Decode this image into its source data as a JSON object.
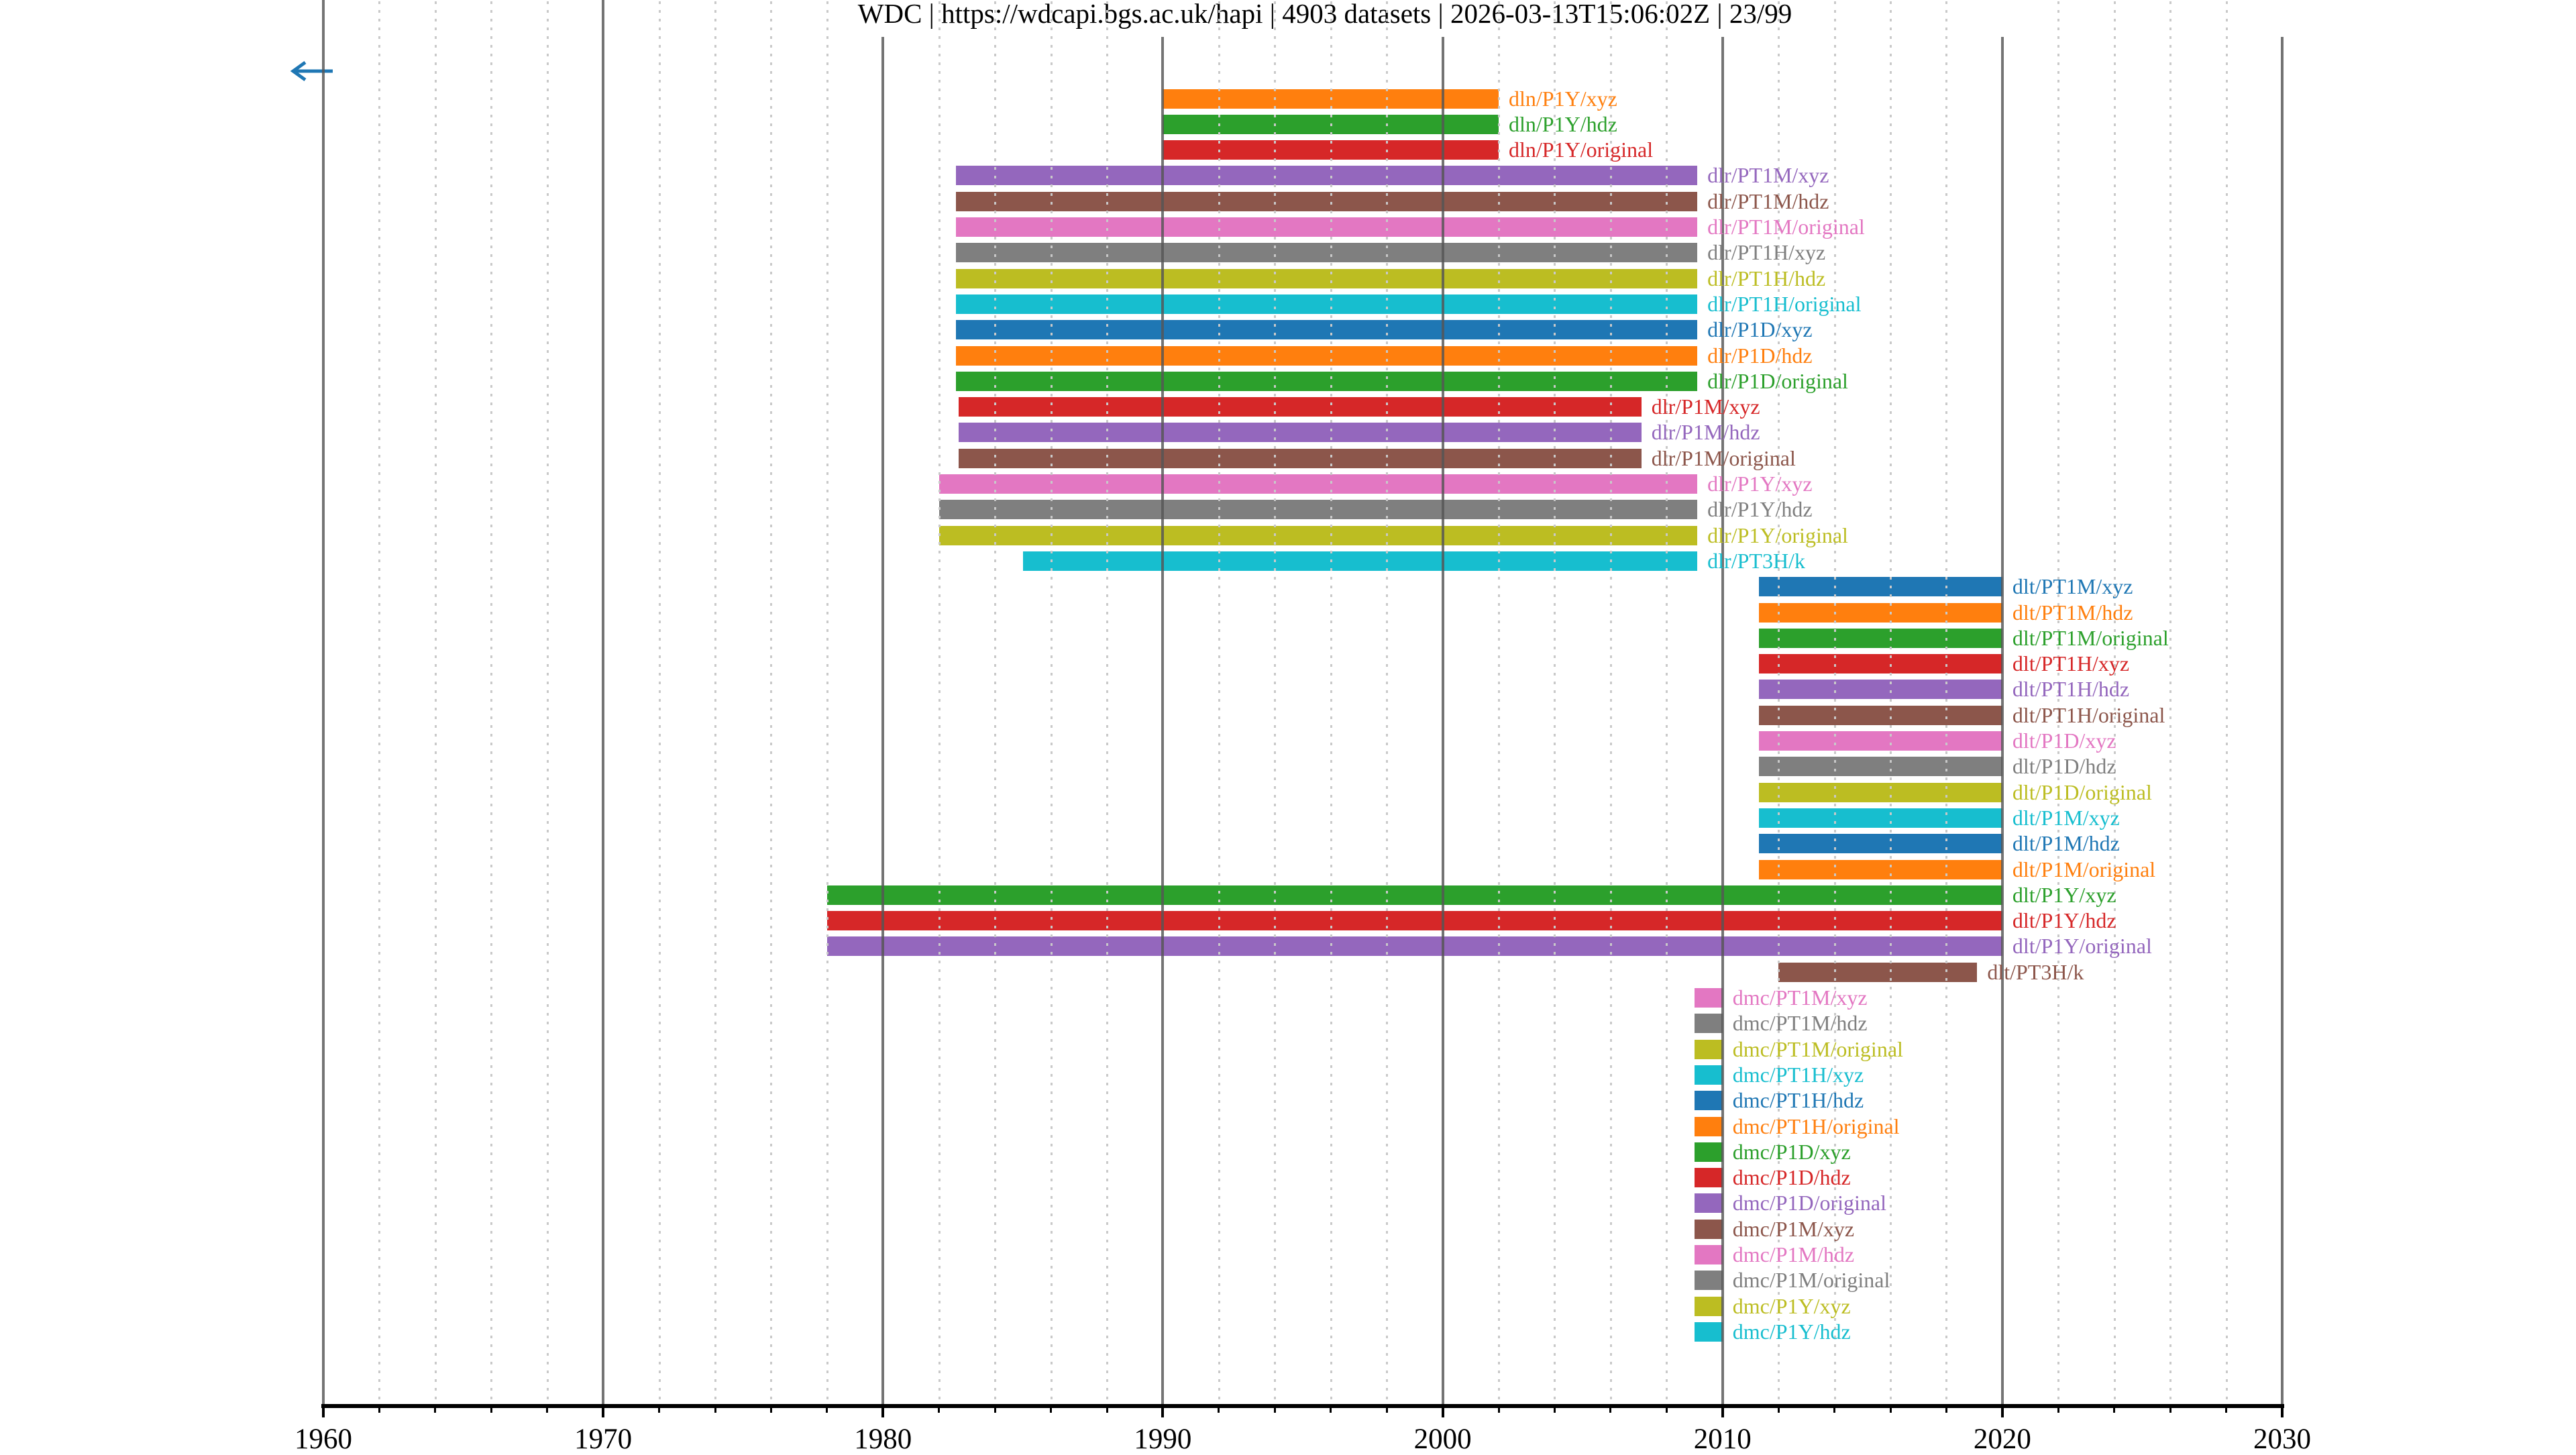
{
  "title": "WDC | https://wdcapi.bgs.ac.uk/hapi | 4903 datasets | 2026-03-13T15:06:02Z | 23/99",
  "nav": {
    "prev_page_icon": "left-arrow",
    "prev_page_color": "#1f77b4"
  },
  "style_colors": {
    "background": "#ffffff",
    "axis_line": "#000000",
    "grid_major": "#555555",
    "grid_minor": "#c9c9c9",
    "title_text": "#000000",
    "tick_text": "#000000"
  },
  "chart_data": {
    "type": "bar",
    "orientation": "horizontal-interval-timeline",
    "title": "WDC | https://wdcapi.bgs.ac.uk/hapi | 4903 datasets | 2026-03-13T15:06:02Z | 23/99",
    "xlabel": "",
    "ylabel": "",
    "xlim": [
      1960,
      2030
    ],
    "x_major_ticks": [
      1960,
      1970,
      1980,
      1990,
      2000,
      2010,
      2020,
      2030
    ],
    "x_minor_tick_step": 2,
    "grid": {
      "major": "solid dark-gray, drawn over bars",
      "minor": "dotted light-gray every 2 years"
    },
    "legend_position": "none (labels drawn at right end of each bar, colored as bar)",
    "bars": [
      {
        "label": "dln/P1Y/xyz",
        "start": 1990.0,
        "end": 2002.0,
        "color": "#ff7f0e"
      },
      {
        "label": "dln/P1Y/hdz",
        "start": 1990.0,
        "end": 2002.0,
        "color": "#2ca02c"
      },
      {
        "label": "dln/P1Y/original",
        "start": 1990.0,
        "end": 2002.0,
        "color": "#d62728"
      },
      {
        "label": "dlr/PT1M/xyz",
        "start": 1982.6,
        "end": 2009.1,
        "color": "#9467bd"
      },
      {
        "label": "dlr/PT1M/hdz",
        "start": 1982.6,
        "end": 2009.1,
        "color": "#8c564b"
      },
      {
        "label": "dlr/PT1M/original",
        "start": 1982.6,
        "end": 2009.1,
        "color": "#e377c2"
      },
      {
        "label": "dlr/PT1H/xyz",
        "start": 1982.6,
        "end": 2009.1,
        "color": "#7f7f7f"
      },
      {
        "label": "dlr/PT1H/hdz",
        "start": 1982.6,
        "end": 2009.1,
        "color": "#bcbd22"
      },
      {
        "label": "dlr/PT1H/original",
        "start": 1982.6,
        "end": 2009.1,
        "color": "#17becf"
      },
      {
        "label": "dlr/P1D/xyz",
        "start": 1982.6,
        "end": 2009.1,
        "color": "#1f77b4"
      },
      {
        "label": "dlr/P1D/hdz",
        "start": 1982.6,
        "end": 2009.1,
        "color": "#ff7f0e"
      },
      {
        "label": "dlr/P1D/original",
        "start": 1982.6,
        "end": 2009.1,
        "color": "#2ca02c"
      },
      {
        "label": "dlr/P1M/xyz",
        "start": 1982.7,
        "end": 2007.1,
        "color": "#d62728"
      },
      {
        "label": "dlr/P1M/hdz",
        "start": 1982.7,
        "end": 2007.1,
        "color": "#9467bd"
      },
      {
        "label": "dlr/P1M/original",
        "start": 1982.7,
        "end": 2007.1,
        "color": "#8c564b"
      },
      {
        "label": "dlr/P1Y/xyz",
        "start": 1982.0,
        "end": 2009.1,
        "color": "#e377c2"
      },
      {
        "label": "dlr/P1Y/hdz",
        "start": 1982.0,
        "end": 2009.1,
        "color": "#7f7f7f"
      },
      {
        "label": "dlr/P1Y/original",
        "start": 1982.0,
        "end": 2009.1,
        "color": "#bcbd22"
      },
      {
        "label": "dlr/PT3H/k",
        "start": 1985.0,
        "end": 2009.1,
        "color": "#17becf"
      },
      {
        "label": "dlt/PT1M/xyz",
        "start": 2011.3,
        "end": 2020.0,
        "color": "#1f77b4"
      },
      {
        "label": "dlt/PT1M/hdz",
        "start": 2011.3,
        "end": 2020.0,
        "color": "#ff7f0e"
      },
      {
        "label": "dlt/PT1M/original",
        "start": 2011.3,
        "end": 2020.0,
        "color": "#2ca02c"
      },
      {
        "label": "dlt/PT1H/xyz",
        "start": 2011.3,
        "end": 2020.0,
        "color": "#d62728"
      },
      {
        "label": "dlt/PT1H/hdz",
        "start": 2011.3,
        "end": 2020.0,
        "color": "#9467bd"
      },
      {
        "label": "dlt/PT1H/original",
        "start": 2011.3,
        "end": 2020.0,
        "color": "#8c564b"
      },
      {
        "label": "dlt/P1D/xyz",
        "start": 2011.3,
        "end": 2020.0,
        "color": "#e377c2"
      },
      {
        "label": "dlt/P1D/hdz",
        "start": 2011.3,
        "end": 2020.0,
        "color": "#7f7f7f"
      },
      {
        "label": "dlt/P1D/original",
        "start": 2011.3,
        "end": 2020.0,
        "color": "#bcbd22"
      },
      {
        "label": "dlt/P1M/xyz",
        "start": 2011.3,
        "end": 2020.0,
        "color": "#17becf"
      },
      {
        "label": "dlt/P1M/hdz",
        "start": 2011.3,
        "end": 2020.0,
        "color": "#1f77b4"
      },
      {
        "label": "dlt/P1M/original",
        "start": 2011.3,
        "end": 2020.0,
        "color": "#ff7f0e"
      },
      {
        "label": "dlt/P1Y/xyz",
        "start": 1978.0,
        "end": 2020.0,
        "color": "#2ca02c"
      },
      {
        "label": "dlt/P1Y/hdz",
        "start": 1978.0,
        "end": 2020.0,
        "color": "#d62728"
      },
      {
        "label": "dlt/P1Y/original",
        "start": 1978.0,
        "end": 2020.0,
        "color": "#9467bd"
      },
      {
        "label": "dlt/PT3H/k",
        "start": 2012.0,
        "end": 2019.1,
        "color": "#8c564b"
      },
      {
        "label": "dmc/PT1M/xyz",
        "start": 2009.0,
        "end": 2010.0,
        "color": "#e377c2"
      },
      {
        "label": "dmc/PT1M/hdz",
        "start": 2009.0,
        "end": 2010.0,
        "color": "#7f7f7f"
      },
      {
        "label": "dmc/PT1M/original",
        "start": 2009.0,
        "end": 2010.0,
        "color": "#bcbd22"
      },
      {
        "label": "dmc/PT1H/xyz",
        "start": 2009.0,
        "end": 2010.0,
        "color": "#17becf"
      },
      {
        "label": "dmc/PT1H/hdz",
        "start": 2009.0,
        "end": 2010.0,
        "color": "#1f77b4"
      },
      {
        "label": "dmc/PT1H/original",
        "start": 2009.0,
        "end": 2010.0,
        "color": "#ff7f0e"
      },
      {
        "label": "dmc/P1D/xyz",
        "start": 2009.0,
        "end": 2010.0,
        "color": "#2ca02c"
      },
      {
        "label": "dmc/P1D/hdz",
        "start": 2009.0,
        "end": 2010.0,
        "color": "#d62728"
      },
      {
        "label": "dmc/P1D/original",
        "start": 2009.0,
        "end": 2010.0,
        "color": "#9467bd"
      },
      {
        "label": "dmc/P1M/xyz",
        "start": 2009.0,
        "end": 2010.0,
        "color": "#8c564b"
      },
      {
        "label": "dmc/P1M/hdz",
        "start": 2009.0,
        "end": 2010.0,
        "color": "#e377c2"
      },
      {
        "label": "dmc/P1M/original",
        "start": 2009.0,
        "end": 2010.0,
        "color": "#7f7f7f"
      },
      {
        "label": "dmc/P1Y/xyz",
        "start": 2009.0,
        "end": 2010.0,
        "color": "#bcbd22"
      },
      {
        "label": "dmc/P1Y/hdz",
        "start": 2009.0,
        "end": 2010.0,
        "color": "#17becf"
      }
    ]
  }
}
